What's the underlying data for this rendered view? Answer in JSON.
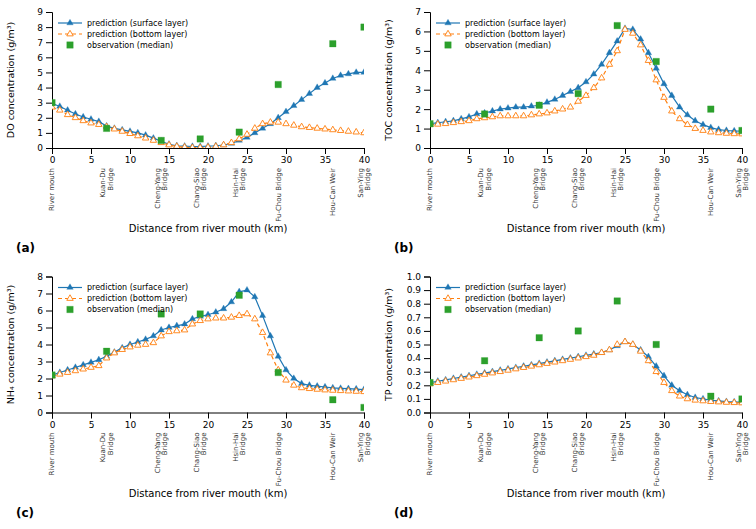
{
  "chart_data": [
    {
      "type": "line",
      "title": "(a)",
      "xlabel": "Distance from river mouth (km)",
      "ylabel": "DO concentration (g/m³)",
      "xlim": [
        0,
        40
      ],
      "xticks": [
        0,
        5,
        10,
        15,
        20,
        25,
        30,
        35,
        40
      ],
      "ylim": [
        0,
        9
      ],
      "yticks": [
        0,
        1,
        2,
        3,
        4,
        5,
        6,
        7,
        8,
        9
      ],
      "grid": false,
      "legend": "upper left",
      "annotations": [
        {
          "text": "River mouth",
          "x": 0
        },
        {
          "text": "Kuan-Du\nBridge",
          "x": 7
        },
        {
          "text": "Cheng-Yang\nBridge",
          "x": 14
        },
        {
          "text": "Chang-Siao\nBridge",
          "x": 19
        },
        {
          "text": "Hsin-Hai\nBridge",
          "x": 24
        },
        {
          "text": "Fu-Chou Bridge",
          "x": 29
        },
        {
          "text": "Hou-Can Weir",
          "x": 36
        },
        {
          "text": "San-Ying\nBridge",
          "x": 40
        }
      ],
      "series": [
        {
          "name": "prediction (surface layer)",
          "type": "line",
          "marker": "triangle",
          "line_style": "solid",
          "x": [
            0,
            1,
            2,
            3,
            4,
            5,
            6,
            7,
            8,
            9,
            10,
            11,
            12,
            13,
            14,
            15,
            16,
            17,
            18,
            19,
            20,
            21,
            22,
            23,
            24,
            25,
            26,
            27,
            28,
            29,
            30,
            31,
            32,
            33,
            34,
            35,
            36,
            37,
            38,
            39,
            40
          ],
          "values": [
            2.95,
            2.75,
            2.5,
            2.25,
            2.05,
            1.9,
            1.75,
            1.45,
            1.3,
            1.2,
            1.1,
            1.0,
            0.85,
            0.65,
            0.45,
            0.25,
            0.15,
            0.12,
            0.1,
            0.1,
            0.12,
            0.15,
            0.2,
            0.3,
            0.5,
            0.7,
            1.0,
            1.3,
            1.6,
            2.0,
            2.4,
            2.8,
            3.2,
            3.6,
            4.0,
            4.3,
            4.6,
            4.8,
            4.9,
            5.0,
            5.0
          ]
        },
        {
          "name": "prediction (bottom layer)",
          "type": "line",
          "marker": "triangle-open",
          "line_style": "dashed",
          "x": [
            0,
            1,
            2,
            3,
            4,
            5,
            6,
            7,
            8,
            9,
            10,
            11,
            12,
            13,
            14,
            15,
            16,
            17,
            18,
            19,
            20,
            21,
            22,
            23,
            24,
            25,
            26,
            27,
            28,
            29,
            30,
            31,
            32,
            33,
            34,
            35,
            36,
            37,
            38,
            39,
            40
          ],
          "values": [
            2.7,
            2.5,
            2.2,
            2.0,
            1.8,
            1.65,
            1.55,
            1.4,
            1.25,
            1.1,
            0.95,
            0.8,
            0.65,
            0.5,
            0.35,
            0.2,
            0.1,
            0.05,
            0.02,
            0.02,
            0.05,
            0.1,
            0.2,
            0.35,
            0.6,
            0.9,
            1.3,
            1.6,
            1.7,
            1.7,
            1.6,
            1.5,
            1.4,
            1.35,
            1.3,
            1.25,
            1.2,
            1.15,
            1.1,
            1.05,
            1.0
          ]
        },
        {
          "name": "observation (median)",
          "type": "scatter",
          "marker": "square",
          "x": [
            0,
            7,
            14,
            19,
            24,
            29,
            36,
            40
          ],
          "values": [
            3.0,
            1.3,
            0.5,
            0.6,
            1.05,
            4.2,
            6.9,
            8.0
          ]
        }
      ]
    },
    {
      "type": "line",
      "title": "(b)",
      "xlabel": "Distance from river mouth (km)",
      "ylabel": "TOC concentration (g/m³)",
      "xlim": [
        0,
        40
      ],
      "xticks": [
        0,
        5,
        10,
        15,
        20,
        25,
        30,
        35,
        40
      ],
      "ylim": [
        0,
        7
      ],
      "yticks": [
        0,
        1,
        2,
        3,
        4,
        5,
        6,
        7
      ],
      "grid": false,
      "legend": "upper left",
      "annotations": [
        {
          "text": "River mouth",
          "x": 0
        },
        {
          "text": "Kuan-Du\nBridge",
          "x": 7
        },
        {
          "text": "Cheng-Yang\nBridge",
          "x": 14
        },
        {
          "text": "Chang-Siao\nBridge",
          "x": 19
        },
        {
          "text": "Hsin-Hai\nBridge",
          "x": 24
        },
        {
          "text": "Fu-Chou Bridge",
          "x": 29
        },
        {
          "text": "Hou-Can Weir",
          "x": 36
        },
        {
          "text": "San-Ying\nBridge",
          "x": 40
        }
      ],
      "series": [
        {
          "name": "prediction (surface layer)",
          "type": "line",
          "marker": "triangle",
          "line_style": "solid",
          "x": [
            0,
            1,
            2,
            3,
            4,
            5,
            6,
            7,
            8,
            9,
            10,
            11,
            12,
            13,
            14,
            15,
            16,
            17,
            18,
            19,
            20,
            21,
            22,
            23,
            24,
            25,
            26,
            27,
            28,
            29,
            30,
            31,
            32,
            33,
            34,
            35,
            36,
            37,
            38,
            39,
            40
          ],
          "values": [
            1.25,
            1.3,
            1.35,
            1.4,
            1.5,
            1.6,
            1.75,
            1.8,
            1.9,
            2.0,
            2.05,
            2.1,
            2.1,
            2.15,
            2.2,
            2.35,
            2.5,
            2.7,
            2.9,
            3.1,
            3.4,
            3.8,
            4.3,
            4.9,
            5.5,
            6.15,
            6.1,
            5.6,
            4.9,
            4.1,
            3.3,
            2.7,
            2.1,
            1.7,
            1.4,
            1.2,
            1.05,
            0.95,
            0.9,
            0.88,
            0.87
          ]
        },
        {
          "name": "prediction (bottom layer)",
          "type": "line",
          "marker": "triangle-open",
          "line_style": "dashed",
          "x": [
            0,
            1,
            2,
            3,
            4,
            5,
            6,
            7,
            8,
            9,
            10,
            11,
            12,
            13,
            14,
            15,
            16,
            17,
            18,
            19,
            20,
            21,
            22,
            23,
            24,
            25,
            26,
            27,
            28,
            29,
            30,
            31,
            32,
            33,
            34,
            35,
            36,
            37,
            38,
            39,
            40
          ],
          "values": [
            1.2,
            1.22,
            1.25,
            1.3,
            1.35,
            1.4,
            1.5,
            1.55,
            1.6,
            1.65,
            1.65,
            1.65,
            1.65,
            1.7,
            1.75,
            1.8,
            1.9,
            2.0,
            2.1,
            2.4,
            2.7,
            3.1,
            3.6,
            4.3,
            5.0,
            6.1,
            5.9,
            5.3,
            4.5,
            3.5,
            2.6,
            1.9,
            1.5,
            1.2,
            1.0,
            0.9,
            0.82,
            0.78,
            0.75,
            0.73,
            0.72
          ]
        },
        {
          "name": "observation (median)",
          "type": "scatter",
          "marker": "square",
          "x": [
            0,
            7,
            14,
            19,
            24,
            29,
            36,
            40
          ],
          "values": [
            1.25,
            1.75,
            2.2,
            2.8,
            6.3,
            4.45,
            2.0,
            0.9
          ]
        }
      ]
    },
    {
      "type": "line",
      "title": "(c)",
      "xlabel": "Distance from river mouth (km)",
      "ylabel": "NH₄ concentration (g/m³)",
      "xlim": [
        0,
        40
      ],
      "xticks": [
        0,
        5,
        10,
        15,
        20,
        25,
        30,
        35,
        40
      ],
      "ylim": [
        0,
        8
      ],
      "yticks": [
        0,
        1,
        2,
        3,
        4,
        5,
        6,
        7,
        8
      ],
      "grid": false,
      "legend": "upper left",
      "annotations": [
        {
          "text": "River mouth",
          "x": 0
        },
        {
          "text": "Kuan-Du\nBridge",
          "x": 7
        },
        {
          "text": "Cheng-Yang\nBridge",
          "x": 14
        },
        {
          "text": "Chang-Siao\nBridge",
          "x": 19
        },
        {
          "text": "Hsin-Hai\nBridge",
          "x": 24
        },
        {
          "text": "Fu-Chou Bridge",
          "x": 29
        },
        {
          "text": "Hou-Can Weir",
          "x": 36
        },
        {
          "text": "San-Ying\nBridge",
          "x": 40
        }
      ],
      "series": [
        {
          "name": "prediction (surface layer)",
          "type": "line",
          "marker": "triangle",
          "line_style": "solid",
          "x": [
            0,
            1,
            2,
            3,
            4,
            5,
            6,
            7,
            8,
            9,
            10,
            11,
            12,
            13,
            14,
            15,
            16,
            17,
            18,
            19,
            20,
            21,
            22,
            23,
            24,
            25,
            26,
            27,
            28,
            29,
            30,
            31,
            32,
            33,
            34,
            35,
            36,
            37,
            38,
            39,
            40
          ],
          "values": [
            2.2,
            2.35,
            2.5,
            2.65,
            2.8,
            2.95,
            3.1,
            3.3,
            3.55,
            3.8,
            4.0,
            4.15,
            4.3,
            4.5,
            4.85,
            5.0,
            5.1,
            5.2,
            5.5,
            5.65,
            5.75,
            5.9,
            6.1,
            6.5,
            7.1,
            7.2,
            6.8,
            5.7,
            4.5,
            3.3,
            2.5,
            2.0,
            1.7,
            1.6,
            1.55,
            1.5,
            1.45,
            1.42,
            1.4,
            1.38,
            1.35
          ]
        },
        {
          "name": "prediction (bottom layer)",
          "type": "line",
          "marker": "triangle-open",
          "line_style": "dashed",
          "x": [
            0,
            1,
            2,
            3,
            4,
            5,
            6,
            7,
            8,
            9,
            10,
            11,
            12,
            13,
            14,
            15,
            16,
            17,
            18,
            19,
            20,
            21,
            22,
            23,
            24,
            25,
            26,
            27,
            28,
            29,
            30,
            31,
            32,
            33,
            34,
            35,
            36,
            37,
            38,
            39,
            40
          ],
          "values": [
            2.15,
            2.25,
            2.35,
            2.45,
            2.55,
            2.65,
            2.75,
            3.2,
            3.5,
            3.7,
            3.85,
            3.95,
            4.0,
            4.1,
            4.5,
            4.75,
            4.8,
            4.85,
            5.2,
            5.4,
            5.5,
            5.55,
            5.55,
            5.6,
            5.7,
            5.8,
            5.5,
            4.7,
            3.5,
            2.5,
            1.9,
            1.6,
            1.45,
            1.4,
            1.36,
            1.32,
            1.3,
            1.28,
            1.26,
            1.24,
            1.22
          ]
        },
        {
          "name": "observation (median)",
          "type": "scatter",
          "marker": "square",
          "x": [
            0,
            7,
            14,
            19,
            24,
            29,
            36,
            40
          ],
          "values": [
            2.2,
            3.6,
            5.8,
            5.8,
            6.9,
            2.35,
            0.75,
            0.3
          ]
        }
      ]
    },
    {
      "type": "line",
      "title": "(d)",
      "xlabel": "Distance from river mouth (km)",
      "ylabel": "TP concentration (g/m³)",
      "xlim": [
        0,
        40
      ],
      "xticks": [
        0,
        5,
        10,
        15,
        20,
        25,
        30,
        35,
        40
      ],
      "ylim": [
        0,
        1.0
      ],
      "yticks": [
        {
          "value": 0,
          "label": "0.0"
        },
        0.1,
        0.2,
        0.3,
        0.4,
        0.5,
        0.6,
        0.7,
        0.8,
        0.9,
        {
          "value": 1,
          "label": "1.0"
        }
      ],
      "grid": false,
      "legend": "upper left",
      "annotations": [
        {
          "text": "River mouth",
          "x": 0
        },
        {
          "text": "Kuan-Du\nBridge",
          "x": 7
        },
        {
          "text": "Cheng-Yang\nBridge",
          "x": 14
        },
        {
          "text": "Chang-Siao\nBridge",
          "x": 19
        },
        {
          "text": "Hsin-Hai\nBridge",
          "x": 24
        },
        {
          "text": "Fu-Chou Bridge",
          "x": 29
        },
        {
          "text": "Hou-Can Weir",
          "x": 36
        },
        {
          "text": "San-Ying\nBridge",
          "x": 40
        }
      ],
      "series": [
        {
          "name": "prediction (surface layer)",
          "type": "line",
          "marker": "triangle",
          "line_style": "solid",
          "x": [
            0,
            1,
            2,
            3,
            4,
            5,
            6,
            7,
            8,
            9,
            10,
            11,
            12,
            13,
            14,
            15,
            16,
            17,
            18,
            19,
            20,
            21,
            22,
            23,
            24,
            25,
            26,
            27,
            28,
            29,
            30,
            31,
            32,
            33,
            34,
            35,
            36,
            37,
            38,
            39,
            40
          ],
          "values": [
            0.22,
            0.23,
            0.24,
            0.25,
            0.26,
            0.27,
            0.28,
            0.29,
            0.3,
            0.31,
            0.32,
            0.33,
            0.34,
            0.35,
            0.36,
            0.37,
            0.38,
            0.39,
            0.4,
            0.41,
            0.42,
            0.43,
            0.44,
            0.46,
            0.49,
            0.52,
            0.5,
            0.46,
            0.41,
            0.34,
            0.27,
            0.2,
            0.16,
            0.13,
            0.11,
            0.1,
            0.09,
            0.085,
            0.08,
            0.078,
            0.075
          ]
        },
        {
          "name": "prediction (bottom layer)",
          "type": "line",
          "marker": "triangle-open",
          "line_style": "dashed",
          "x": [
            0,
            1,
            2,
            3,
            4,
            5,
            6,
            7,
            8,
            9,
            10,
            11,
            12,
            13,
            14,
            15,
            16,
            17,
            18,
            19,
            20,
            21,
            22,
            23,
            24,
            25,
            26,
            27,
            28,
            29,
            30,
            31,
            32,
            33,
            34,
            35,
            36,
            37,
            38,
            39,
            40
          ],
          "values": [
            0.21,
            0.22,
            0.23,
            0.24,
            0.25,
            0.26,
            0.27,
            0.28,
            0.29,
            0.3,
            0.31,
            0.32,
            0.33,
            0.34,
            0.35,
            0.36,
            0.37,
            0.38,
            0.39,
            0.4,
            0.41,
            0.42,
            0.44,
            0.46,
            0.5,
            0.52,
            0.5,
            0.45,
            0.38,
            0.3,
            0.22,
            0.16,
            0.12,
            0.1,
            0.09,
            0.085,
            0.08,
            0.077,
            0.074,
            0.072,
            0.07
          ]
        },
        {
          "name": "observation (median)",
          "type": "scatter",
          "marker": "square",
          "x": [
            0,
            7,
            14,
            19,
            24,
            29,
            36,
            40
          ],
          "values": [
            0.22,
            0.38,
            0.55,
            0.6,
            0.82,
            0.5,
            0.12,
            0.1
          ]
        }
      ]
    }
  ]
}
